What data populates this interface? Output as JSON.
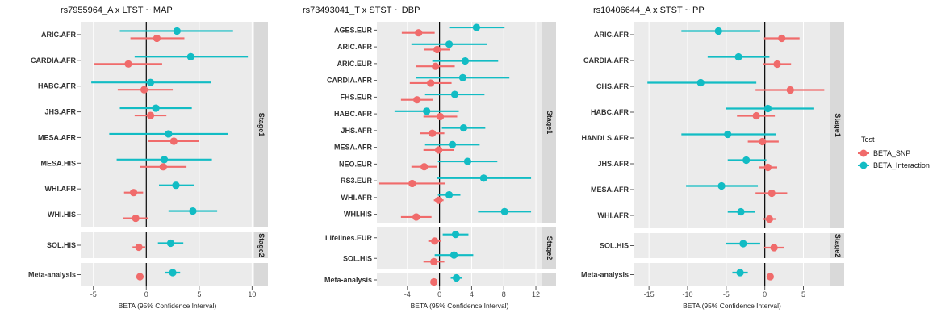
{
  "colors": {
    "snp": "#F06B6B",
    "interaction": "#12BCC4",
    "panel_bg": "#EBEBEB",
    "strip_bg": "#D9D9D9",
    "zero_line": "#000000",
    "grid": "#FFFFFF"
  },
  "legend": {
    "title": "Test",
    "items": [
      {
        "key": "snp",
        "label": "BETA_SNP"
      },
      {
        "key": "interaction",
        "label": "BETA_Interaction"
      }
    ]
  },
  "chart_data": [
    {
      "type": "forest",
      "title": "rs7955964_A x LTST ~ MAP",
      "xlabel": "BETA (95% Confidence Interval)",
      "xlim": [
        -6.2,
        10.2
      ],
      "xticks": [
        -5,
        0,
        5,
        10
      ],
      "xtick_labels": [
        "-5",
        "0",
        "5",
        "10"
      ],
      "grid": true,
      "legend": "right",
      "facets": [
        {
          "strip": "Stage1",
          "rows": [
            {
              "label": "ARIC.AFR",
              "snp": [
                1.0,
                -1.5,
                3.6
              ],
              "interaction": [
                2.9,
                -2.5,
                8.2
              ]
            },
            {
              "label": "CARDIA.AFR",
              "snp": [
                -1.7,
                -4.9,
                1.5
              ],
              "interaction": [
                4.2,
                -1.1,
                9.6
              ]
            },
            {
              "label": "HABC.AFR",
              "snp": [
                -0.2,
                -2.7,
                2.5
              ],
              "interaction": [
                0.4,
                -5.2,
                6.1
              ]
            },
            {
              "label": "JHS.AFR",
              "snp": [
                0.4,
                -1.1,
                1.9
              ],
              "interaction": [
                0.9,
                -2.5,
                4.3
              ]
            },
            {
              "label": "MESA.AFR",
              "snp": [
                2.6,
                0.2,
                5.0
              ],
              "interaction": [
                2.1,
                -3.5,
                7.7
              ]
            },
            {
              "label": "MESA.HIS",
              "snp": [
                1.6,
                -0.6,
                3.8
              ],
              "interaction": [
                1.7,
                -2.8,
                6.2
              ]
            },
            {
              "label": "WHI.AFR",
              "snp": [
                -1.2,
                -2.1,
                -0.3
              ],
              "interaction": [
                2.8,
                1.2,
                4.5
              ]
            },
            {
              "label": "WHI.HIS",
              "snp": [
                -1.0,
                -2.2,
                0.2
              ],
              "interaction": [
                4.4,
                2.1,
                6.7
              ]
            }
          ]
        },
        {
          "strip": "Stage2",
          "rows": [
            {
              "label": "SOL.HIS",
              "snp": [
                -0.7,
                -1.3,
                -0.1
              ],
              "interaction": [
                2.3,
                1.1,
                3.5
              ]
            }
          ]
        },
        {
          "strip": "",
          "rows": [
            {
              "label": "Meta-analysis",
              "snp": [
                -0.6,
                -1.0,
                -0.2
              ],
              "interaction": [
                2.5,
                1.8,
                3.2
              ]
            }
          ]
        }
      ]
    },
    {
      "type": "forest",
      "title": "rs73493041_T x STST ~ DBP",
      "xlabel": "BETA (95% Confidence Interval)",
      "xlim": [
        -7.8,
        12.8
      ],
      "xticks": [
        -4,
        0,
        4,
        8,
        12
      ],
      "xtick_labels": [
        "-4",
        "0",
        "4",
        "8",
        "12"
      ],
      "grid": true,
      "legend": "right",
      "facets": [
        {
          "strip": "Stage1",
          "rows": [
            {
              "label": "AGES.EUR",
              "snp": [
                -2.6,
                -4.7,
                -0.6
              ],
              "interaction": [
                4.6,
                1.2,
                8.1
              ]
            },
            {
              "label": "ARIC.AFR",
              "snp": [
                -0.3,
                -1.9,
                1.3
              ],
              "interaction": [
                1.2,
                -3.5,
                5.9
              ]
            },
            {
              "label": "ARIC.EUR",
              "snp": [
                -0.5,
                -2.9,
                1.9
              ],
              "interaction": [
                3.2,
                -0.9,
                7.3
              ]
            },
            {
              "label": "CARDIA.AFR",
              "snp": [
                -1.1,
                -3.7,
                1.5
              ],
              "interaction": [
                2.9,
                -2.9,
                8.7
              ]
            },
            {
              "label": "FHS.EUR",
              "snp": [
                -2.8,
                -4.8,
                -0.8
              ],
              "interaction": [
                1.9,
                -1.8,
                5.6
              ]
            },
            {
              "label": "HABC.AFR",
              "snp": [
                0.1,
                -2.0,
                2.2
              ],
              "interaction": [
                -1.6,
                -5.6,
                2.4
              ]
            },
            {
              "label": "JHS.AFR",
              "snp": [
                -0.9,
                -2.4,
                0.6
              ],
              "interaction": [
                3.0,
                0.3,
                5.7
              ]
            },
            {
              "label": "MESA.AFR",
              "snp": [
                -0.1,
                -2.0,
                1.8
              ],
              "interaction": [
                1.6,
                -1.8,
                5.0
              ]
            },
            {
              "label": "NEO.EUR",
              "snp": [
                -1.9,
                -3.5,
                -0.3
              ],
              "interaction": [
                3.5,
                -0.2,
                7.2
              ]
            },
            {
              "label": "RS3.EUR",
              "snp": [
                -3.4,
                -7.5,
                0.7
              ],
              "interaction": [
                5.5,
                -0.3,
                11.4
              ]
            },
            {
              "label": "WHI.AFR",
              "snp": [
                -0.1,
                -0.7,
                0.5
              ],
              "interaction": [
                1.2,
                -0.2,
                2.6
              ]
            },
            {
              "label": "WHI.HIS",
              "snp": [
                -2.9,
                -4.8,
                -1.0
              ],
              "interaction": [
                8.1,
                4.8,
                11.4
              ]
            }
          ]
        },
        {
          "strip": "Stage2",
          "rows": [
            {
              "label": "Lifelines.EUR",
              "snp": [
                -0.6,
                -1.4,
                0.2
              ],
              "interaction": [
                2.0,
                0.4,
                3.6
              ]
            },
            {
              "label": "SOL.HIS",
              "snp": [
                -0.7,
                -2.0,
                0.6
              ],
              "interaction": [
                1.8,
                -0.6,
                4.2
              ]
            }
          ]
        },
        {
          "strip": "",
          "rows": [
            {
              "label": "Meta-analysis",
              "snp": [
                -0.7,
                -1.0,
                -0.4
              ],
              "interaction": [
                2.1,
                1.4,
                2.8
              ]
            }
          ]
        }
      ]
    },
    {
      "type": "forest",
      "title": "rs10406644_A x STST ~ PP",
      "xlabel": "BETA (95% Confidence Interval)",
      "xlim": [
        -17,
        8.5
      ],
      "xticks": [
        -15,
        -10,
        -5,
        0,
        5
      ],
      "xtick_labels": [
        "-15",
        "-10",
        "-5",
        "0",
        "5"
      ],
      "grid": true,
      "legend": "right",
      "facets": [
        {
          "strip": "Stage1",
          "rows": [
            {
              "label": "ARIC.AFR",
              "snp": [
                2.2,
                -0.1,
                4.5
              ],
              "interaction": [
                -6.0,
                -10.8,
                -0.6
              ]
            },
            {
              "label": "CARDIA.AFR",
              "snp": [
                1.6,
                -0.2,
                3.4
              ],
              "interaction": [
                -3.4,
                -7.4,
                0.6
              ]
            },
            {
              "label": "CHS.AFR",
              "snp": [
                3.3,
                -1.2,
                7.7
              ],
              "interaction": [
                -8.3,
                -15.2,
                -1.1
              ]
            },
            {
              "label": "HABC.AFR",
              "snp": [
                -1.1,
                -3.6,
                1.3
              ],
              "interaction": [
                0.4,
                -5.0,
                6.4
              ]
            },
            {
              "label": "HANDLS.AFR",
              "snp": [
                -0.3,
                -2.2,
                1.8
              ],
              "interaction": [
                -4.8,
                -10.8,
                1.4
              ]
            },
            {
              "label": "JHS.AFR",
              "snp": [
                0.4,
                -0.8,
                1.6
              ],
              "interaction": [
                -2.4,
                -4.8,
                0.2
              ]
            },
            {
              "label": "MESA.AFR",
              "snp": [
                0.9,
                -1.2,
                2.9
              ],
              "interaction": [
                -5.6,
                -10.2,
                -0.9
              ]
            },
            {
              "label": "WHI.AFR",
              "snp": [
                0.6,
                -0.2,
                1.4
              ],
              "interaction": [
                -3.1,
                -4.8,
                -1.3
              ]
            }
          ]
        },
        {
          "strip": "Stage2",
          "rows": [
            {
              "label": "SOL.HIS",
              "snp": [
                1.2,
                -0.1,
                2.5
              ],
              "interaction": [
                -2.8,
                -5.0,
                -0.6
              ]
            }
          ]
        },
        {
          "strip": "",
          "rows": [
            {
              "label": "Meta-analysis",
              "snp": [
                0.7,
                0.3,
                1.1
              ],
              "interaction": [
                -3.2,
                -4.2,
                -2.2
              ]
            }
          ]
        }
      ]
    }
  ]
}
